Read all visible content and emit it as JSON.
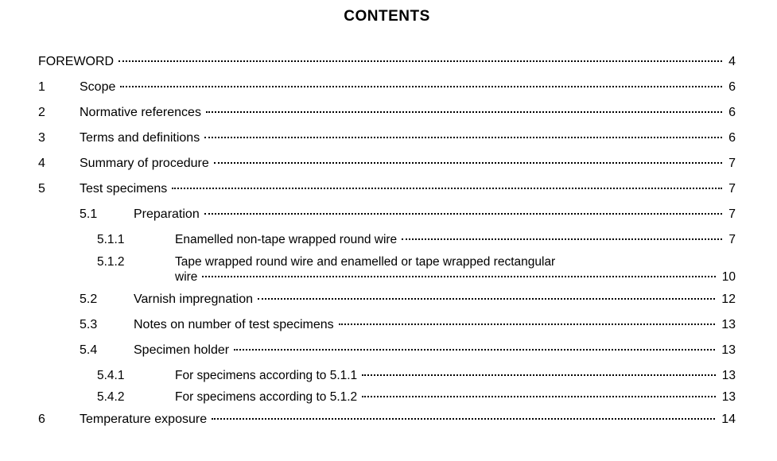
{
  "title": "CONTENTS",
  "colors": {
    "text": "#000000",
    "bg": "#ffffff"
  },
  "typography": {
    "title_fontsize": 19,
    "body_fontsize": 16,
    "sub_fontsize": 15.5
  },
  "entries": {
    "foreword": {
      "num": "",
      "label": "FOREWORD",
      "page": "4"
    },
    "e1": {
      "num": "1",
      "label": "Scope",
      "page": "6"
    },
    "e2": {
      "num": "2",
      "label": "Normative references",
      "page": "6"
    },
    "e3": {
      "num": "3",
      "label": "Terms and definitions",
      "page": "6"
    },
    "e4": {
      "num": "4",
      "label": "Summary of   procedure",
      "page": "7"
    },
    "e5": {
      "num": "5",
      "label": "Test  specimens",
      "page": "7"
    },
    "e5_1": {
      "num": "5.1",
      "label": "Preparation",
      "page": "7"
    },
    "e5_1_1": {
      "num": "5.1.1",
      "label": "Enamelled non-tape wrapped round wire",
      "page": "7"
    },
    "e5_1_2": {
      "num": "5.1.2",
      "label": "Tape wrapped round wire and enamelled or tape wrapped rectangular",
      "label2": "wire",
      "page": "10"
    },
    "e5_2": {
      "num": "5.2",
      "label": "Varnish  impregnation",
      "page": "12"
    },
    "e5_3": {
      "num": "5.3",
      "label": "Notes on number of test specimens",
      "page": "13"
    },
    "e5_4": {
      "num": "5.4",
      "label": "Specimen   holder",
      "page": "13"
    },
    "e5_4_1": {
      "num": "5.4.1",
      "label": "For specimens according to 5.1.1",
      "page": "13"
    },
    "e5_4_2": {
      "num": "5.4.2",
      "label": "For specimens according to 5.1.2",
      "page": "13"
    },
    "e6": {
      "num": "6",
      "label": "Temperature exposure",
      "page": "14"
    }
  }
}
